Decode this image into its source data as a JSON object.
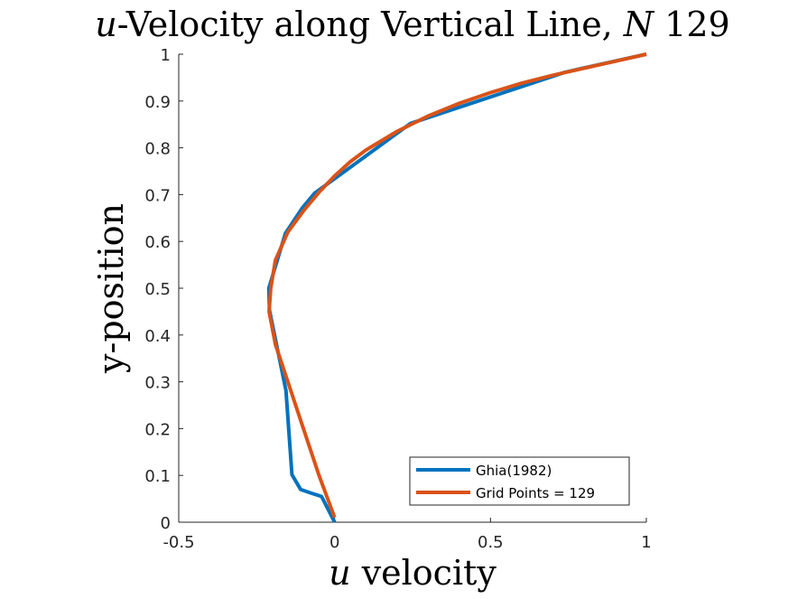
{
  "chart_data": {
    "type": "line",
    "title_prefix": "u",
    "title_middle": "-Velocity along Vertical Line, ",
    "title_N": "N",
    "title_suffix": " 129",
    "xlabel_var": "u",
    "xlabel_rest": " velocity",
    "ylabel": "y-position",
    "xlim": [
      -0.5,
      1
    ],
    "ylim": [
      0,
      1
    ],
    "xticks": [
      "-0.5",
      "0",
      "0.5",
      "1"
    ],
    "yticks": [
      "0",
      "0.1",
      "0.2",
      "0.3",
      "0.4",
      "0.5",
      "0.6",
      "0.7",
      "0.8",
      "0.9",
      "1"
    ],
    "legend_position": "bottom-right",
    "series": [
      {
        "name": "Ghia(1982)",
        "color": "#0072BD",
        "x": [
          0.0,
          -0.042,
          -0.077,
          -0.109,
          -0.137,
          -0.156,
          -0.209,
          -0.211,
          -0.158,
          -0.103,
          -0.064,
          0.0,
          0.243,
          0.737,
          0.788,
          0.843,
          1.0
        ],
        "y": [
          0.0,
          0.055,
          0.0625,
          0.07,
          0.1016,
          0.281,
          0.453,
          0.5,
          0.617,
          0.672,
          0.703,
          0.734,
          0.852,
          0.961,
          0.969,
          0.977,
          1.0
        ]
      },
      {
        "name": "Grid Points = 129",
        "color": "#D95319",
        "x": [
          0.0,
          -0.05,
          -0.1,
          -0.15,
          -0.19,
          -0.21,
          -0.205,
          -0.19,
          -0.15,
          -0.1,
          -0.05,
          0.0,
          0.05,
          0.1,
          0.2,
          0.3,
          0.4,
          0.5,
          0.6,
          0.7,
          0.8,
          0.9,
          1.0
        ],
        "y": [
          0.01,
          0.1,
          0.2,
          0.3,
          0.38,
          0.45,
          0.5,
          0.56,
          0.62,
          0.665,
          0.705,
          0.74,
          0.77,
          0.795,
          0.835,
          0.868,
          0.895,
          0.918,
          0.938,
          0.955,
          0.97,
          0.985,
          1.0
        ]
      }
    ]
  }
}
